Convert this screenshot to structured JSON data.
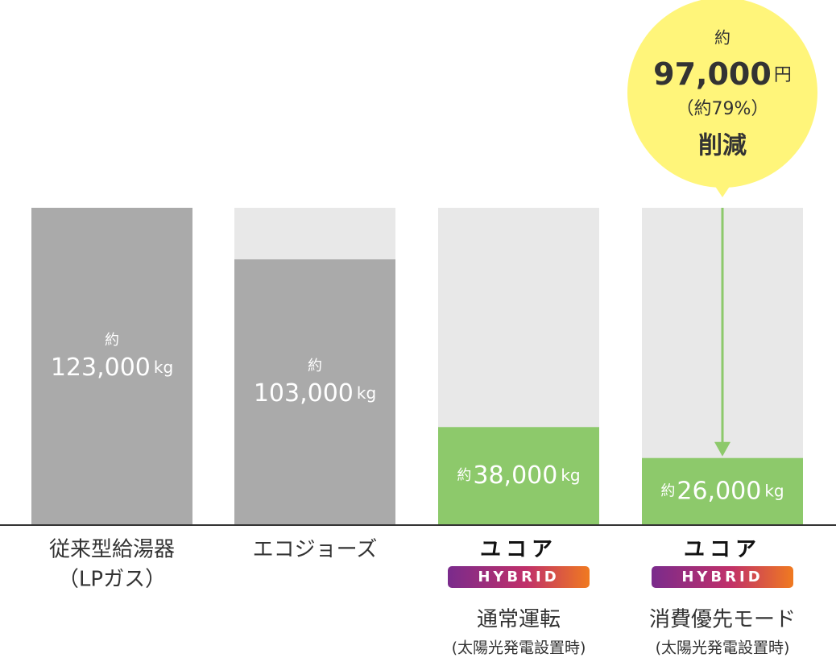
{
  "chart_data": {
    "type": "bar",
    "categories": [
      "従来型給湯器",
      "エコジョーズ",
      "通常運転",
      "消費優先モード"
    ],
    "category_notes": [
      "（LPガス）",
      null,
      "(太陽光発電設置時)",
      "(太陽光発電設置時)"
    ],
    "category_brands": [
      null,
      null,
      "ユコア",
      "ユコア"
    ],
    "brand_badge": "HYBRID",
    "values": [
      123000,
      103000,
      38000,
      26000
    ],
    "value_labels": [
      "123,000",
      "103,000",
      "38,000",
      "26,000"
    ],
    "value_prefix": "約",
    "unit": "kg",
    "colors": [
      "#aaaaaa",
      "#aaaaaa",
      "#8dc96b",
      "#8dc96b"
    ],
    "ylim": [
      0,
      123000
    ],
    "annotation": {
      "prefix": "約",
      "value": 97000,
      "value_label": "97,000",
      "unit": "円",
      "sub": "（約79%）",
      "text": "削減",
      "color": "#fff57a"
    }
  }
}
